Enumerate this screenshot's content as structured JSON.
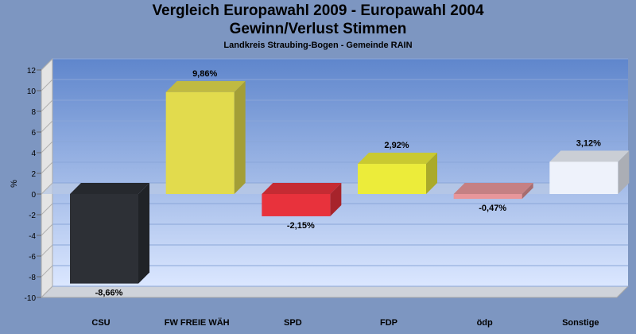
{
  "title_line1": "Vergleich Europawahl 2009 - Europawahl 2004",
  "title_line2": "Gewinn/Verlust Stimmen",
  "subtitle": "Landkreis Straubing-Bogen - Gemeinde RAIN",
  "colors": {
    "background": "#7d96c1",
    "plot_top": "#5f86cc",
    "plot_bottom": "#dbe7ff",
    "wall_side": "#e4e4e4"
  },
  "chart_data": {
    "type": "bar",
    "title": "Vergleich Europawahl 2009 - Europawahl 2004",
    "subtitle": "Gewinn/Verlust Stimmen",
    "xlabel": "",
    "ylabel": "%",
    "ylim": [
      -10,
      12
    ],
    "yticks": [
      "12",
      "10",
      "8",
      "6",
      "4",
      "2",
      "0",
      "-2",
      "-4",
      "-6",
      "-8",
      "-10"
    ],
    "grid": true,
    "legend": "none",
    "categories": [
      "CSU",
      "FW FREIE WÄH",
      "SPD",
      "FDP",
      "ödp",
      "Sonstige"
    ],
    "values": [
      -8.66,
      9.86,
      -2.15,
      2.92,
      -0.47,
      3.12
    ],
    "data_labels": [
      "-8,66%",
      "9,86%",
      "-2,15%",
      "2,92%",
      "-0,47%",
      "3,12%"
    ],
    "bar_colors": [
      "#2d3036",
      "#e2db4d",
      "#e8323c",
      "#ecec3a",
      "#e8969a",
      "#eef2fb"
    ]
  }
}
